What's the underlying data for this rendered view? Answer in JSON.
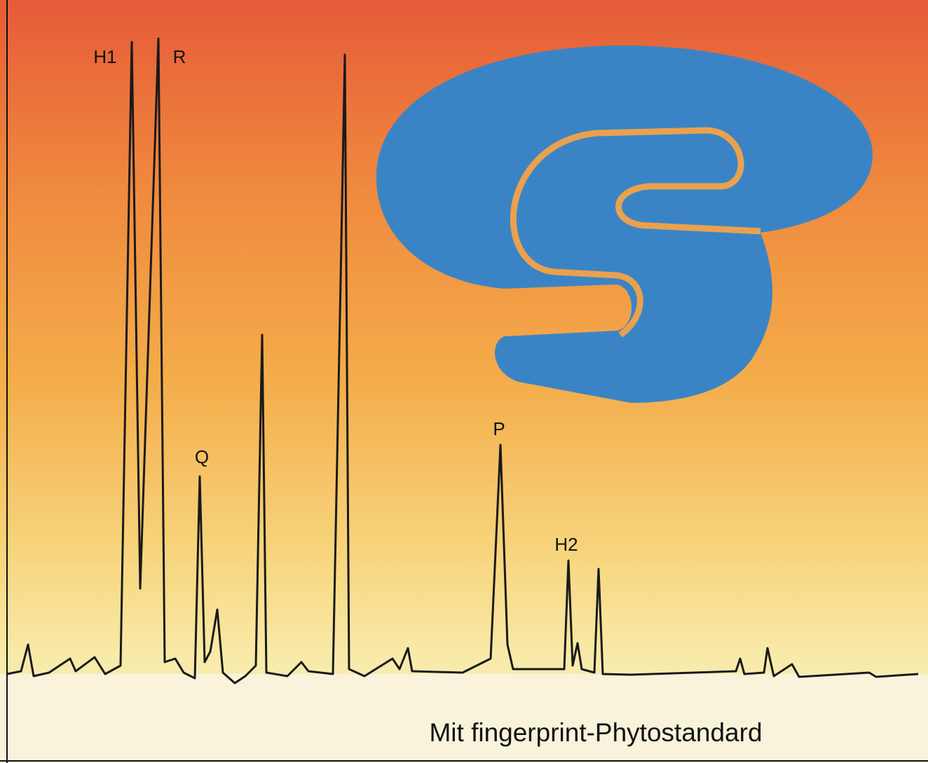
{
  "peaks": [
    {
      "label": "H1"
    },
    {
      "label": "R"
    },
    {
      "label": "Q"
    },
    {
      "label": "P"
    },
    {
      "label": "H2"
    }
  ],
  "caption": "Mit fingerprint-Phytostandard"
}
